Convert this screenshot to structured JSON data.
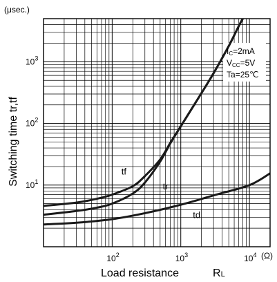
{
  "chart_data": {
    "type": "line",
    "title": "",
    "xlabel": "Load resistance",
    "xlabel_symbol": "R",
    "xlabel_subscript": "L",
    "ylabel": "Switching time tr,tf",
    "y_unit": "(μsec.)",
    "x_unit": "(Ω)",
    "x_scale": "log",
    "y_scale": "log",
    "xlim": [
      10,
      20000
    ],
    "ylim": [
      1,
      5000
    ],
    "x_ticks": [
      {
        "base": "10",
        "exp": "2",
        "value": 100
      },
      {
        "base": "10",
        "exp": "3",
        "value": 1000
      },
      {
        "base": "10",
        "exp": "4",
        "value": 10000
      }
    ],
    "y_ticks": [
      {
        "base": "10",
        "exp": "1",
        "value": 10
      },
      {
        "base": "10",
        "exp": "2",
        "value": 100
      },
      {
        "base": "10",
        "exp": "3",
        "value": 1000
      }
    ],
    "grid": true,
    "conditions": [
      {
        "main": "I",
        "sub": "C",
        "rest": "=2mA"
      },
      {
        "main": "V",
        "sub": "CC",
        "rest": "=5V"
      },
      {
        "main": "Ta",
        "sub": "",
        "rest": "=25℃"
      }
    ],
    "series": [
      {
        "name": "tf",
        "x": [
          10,
          30,
          60,
          100,
          200,
          300,
          500,
          700,
          1000,
          2000,
          3000,
          5000,
          7000,
          8000
        ],
        "y": [
          4.6,
          5.2,
          6.0,
          7.0,
          9.6,
          14,
          26,
          48,
          90,
          310,
          650,
          1800,
          3800,
          5000
        ]
      },
      {
        "name": "tr",
        "x": [
          10,
          30,
          60,
          100,
          200,
          300,
          500,
          700,
          1000,
          2000,
          3000,
          5000,
          7000,
          8000
        ],
        "y": [
          3.3,
          3.8,
          4.3,
          5.0,
          7.3,
          11,
          24,
          47,
          90,
          310,
          650,
          1800,
          3800,
          5000
        ]
      },
      {
        "name": "td",
        "x": [
          10,
          30,
          100,
          300,
          1000,
          3000,
          10000,
          20000
        ],
        "y": [
          2.3,
          2.45,
          2.8,
          3.5,
          4.8,
          6.8,
          10,
          15.5
        ]
      }
    ]
  }
}
